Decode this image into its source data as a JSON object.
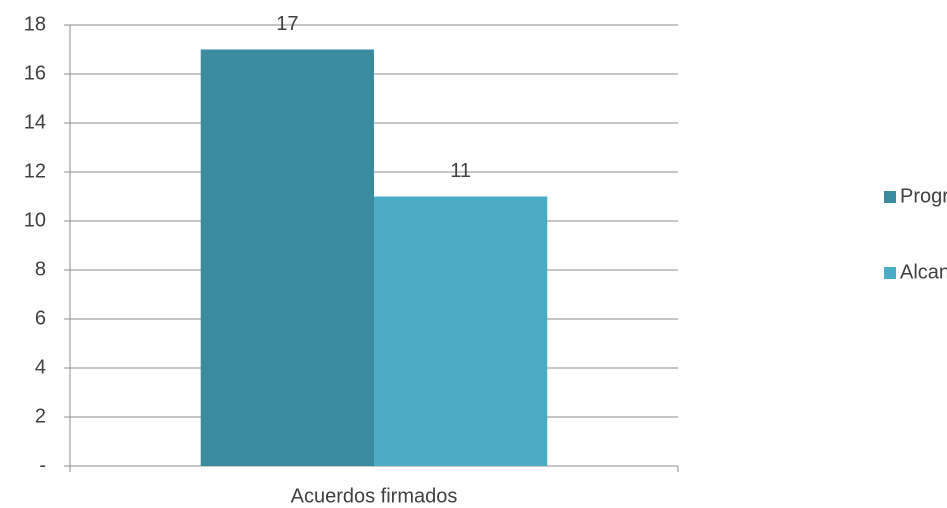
{
  "chart_data": {
    "type": "bar",
    "categories": [
      "Acuerdos firmados"
    ],
    "series": [
      {
        "name": "Programado",
        "color": "#3a8aa0",
        "values": [
          17
        ]
      },
      {
        "name": "Alcanzado",
        "color": "#4bacc6",
        "values": [
          11
        ]
      }
    ],
    "ylim": [
      0,
      18
    ],
    "yticks": [
      {
        "value": 0,
        "label": "-"
      },
      2,
      4,
      6,
      8,
      10,
      12,
      14,
      16,
      18
    ],
    "grid": true,
    "legend": "right",
    "data_labels": true
  }
}
